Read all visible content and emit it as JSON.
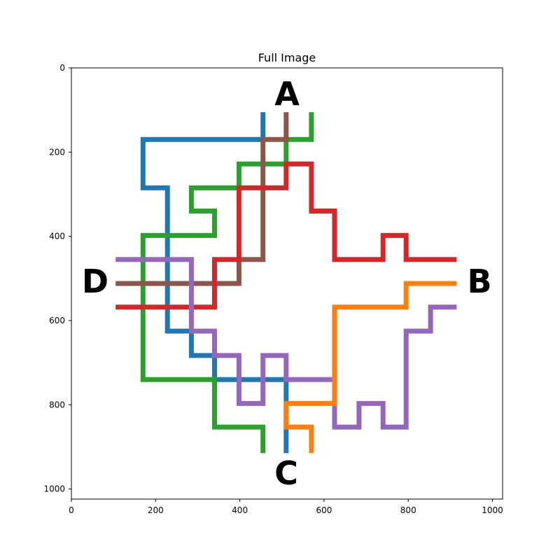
{
  "title": "Full Image",
  "x_ticks": [
    "0",
    "200",
    "400",
    "600",
    "800",
    "1000"
  ],
  "y_ticks": [
    "0",
    "200",
    "400",
    "600",
    "800",
    "1000"
  ],
  "endpoints": [
    {
      "id": "A",
      "label": "A"
    },
    {
      "id": "B",
      "label": "B"
    },
    {
      "id": "C",
      "label": "C"
    },
    {
      "id": "D",
      "label": "D"
    }
  ],
  "colors": {
    "blue": "#1f77b4",
    "orange": "#ff7f0e",
    "green": "#2ca02c",
    "red": "#d62728",
    "purple": "#9467bd",
    "brown": "#8c564b"
  },
  "paths": [
    {
      "color": "blue",
      "points": [
        [
          455,
          105
        ],
        [
          455,
          170
        ],
        [
          170,
          170
        ],
        [
          170,
          285
        ],
        [
          228,
          285
        ],
        [
          228,
          625
        ],
        [
          285,
          625
        ],
        [
          285,
          683
        ],
        [
          340,
          683
        ],
        [
          340,
          740
        ],
        [
          510,
          740
        ],
        [
          510,
          915
        ]
      ]
    },
    {
      "color": "green",
      "points": [
        [
          570,
          105
        ],
        [
          570,
          170
        ],
        [
          510,
          170
        ],
        [
          510,
          228
        ],
        [
          398,
          228
        ],
        [
          398,
          285
        ],
        [
          285,
          285
        ],
        [
          285,
          340
        ],
        [
          340,
          340
        ],
        [
          340,
          398
        ],
        [
          170,
          398
        ],
        [
          170,
          740
        ],
        [
          340,
          740
        ],
        [
          340,
          853
        ],
        [
          455,
          853
        ],
        [
          455,
          915
        ]
      ]
    },
    {
      "color": "brown",
      "points": [
        [
          510,
          105
        ],
        [
          510,
          170
        ],
        [
          455,
          170
        ],
        [
          455,
          455
        ],
        [
          398,
          455
        ],
        [
          398,
          512
        ],
        [
          105,
          512
        ]
      ]
    },
    {
      "color": "red",
      "points": [
        [
          105,
          568
        ],
        [
          340,
          568
        ],
        [
          340,
          455
        ],
        [
          398,
          455
        ],
        [
          398,
          285
        ],
        [
          510,
          285
        ],
        [
          510,
          228
        ],
        [
          570,
          228
        ],
        [
          570,
          340
        ],
        [
          625,
          340
        ],
        [
          625,
          455
        ],
        [
          740,
          455
        ],
        [
          740,
          398
        ],
        [
          795,
          398
        ],
        [
          795,
          455
        ],
        [
          915,
          455
        ]
      ]
    },
    {
      "color": "purple",
      "points": [
        [
          105,
          455
        ],
        [
          285,
          455
        ],
        [
          285,
          625
        ],
        [
          340,
          625
        ],
        [
          340,
          683
        ],
        [
          398,
          683
        ],
        [
          398,
          797
        ],
        [
          455,
          797
        ],
        [
          455,
          683
        ],
        [
          510,
          683
        ],
        [
          510,
          740
        ],
        [
          625,
          740
        ],
        [
          625,
          853
        ],
        [
          683,
          853
        ],
        [
          683,
          797
        ],
        [
          740,
          797
        ],
        [
          740,
          853
        ],
        [
          795,
          853
        ],
        [
          795,
          625
        ],
        [
          853,
          625
        ],
        [
          853,
          568
        ],
        [
          915,
          568
        ]
      ]
    },
    {
      "color": "orange",
      "points": [
        [
          915,
          512
        ],
        [
          795,
          512
        ],
        [
          795,
          568
        ],
        [
          625,
          568
        ],
        [
          625,
          797
        ],
        [
          510,
          797
        ],
        [
          510,
          853
        ],
        [
          570,
          853
        ],
        [
          570,
          915
        ]
      ]
    }
  ]
}
